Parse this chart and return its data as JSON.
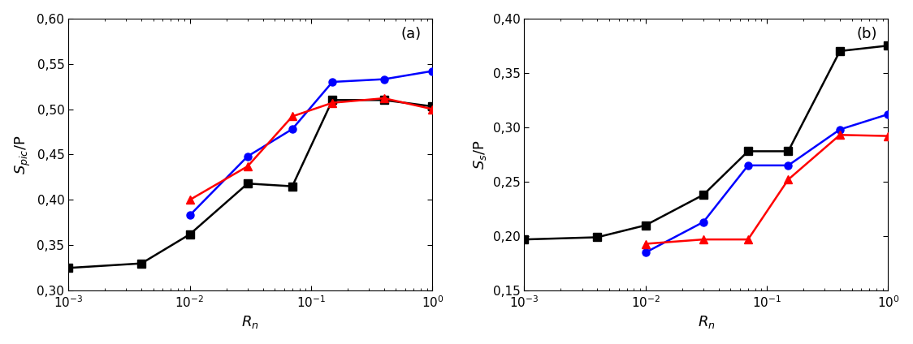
{
  "panel_a": {
    "title": "(a)",
    "ylabel": "$S_{pic}$/P",
    "xlabel": "$R_n$",
    "ylim": [
      0.3,
      0.6
    ],
    "yticks": [
      0.3,
      0.35,
      0.4,
      0.45,
      0.5,
      0.55,
      0.6
    ],
    "black_x": [
      0.001,
      0.004,
      0.01,
      0.03,
      0.07,
      0.15,
      0.4,
      1.0
    ],
    "black_y": [
      0.325,
      0.33,
      0.362,
      0.418,
      0.415,
      0.51,
      0.51,
      0.503
    ],
    "blue_x": [
      0.01,
      0.03,
      0.07,
      0.15,
      0.4,
      1.0
    ],
    "blue_y": [
      0.383,
      0.448,
      0.478,
      0.53,
      0.533,
      0.542
    ],
    "red_x": [
      0.01,
      0.03,
      0.07,
      0.15,
      0.4,
      1.0
    ],
    "red_y": [
      0.4,
      0.437,
      0.492,
      0.507,
      0.512,
      0.5
    ]
  },
  "panel_b": {
    "title": "(b)",
    "ylabel": "$S_s$/P",
    "xlabel": "$R_n$",
    "ylim": [
      0.15,
      0.4
    ],
    "yticks": [
      0.15,
      0.2,
      0.25,
      0.3,
      0.35,
      0.4
    ],
    "black_x": [
      0.001,
      0.004,
      0.01,
      0.03,
      0.07,
      0.15,
      0.4,
      1.0
    ],
    "black_y": [
      0.197,
      0.199,
      0.21,
      0.238,
      0.278,
      0.278,
      0.37,
      0.375
    ],
    "blue_x": [
      0.01,
      0.03,
      0.07,
      0.15,
      0.4,
      1.0
    ],
    "blue_y": [
      0.185,
      0.213,
      0.265,
      0.265,
      0.298,
      0.312
    ],
    "red_x": [
      0.01,
      0.03,
      0.07,
      0.15,
      0.4,
      1.0
    ],
    "red_y": [
      0.193,
      0.197,
      0.197,
      0.252,
      0.293,
      0.292
    ]
  },
  "black_color": "#000000",
  "blue_color": "#0000FF",
  "red_color": "#FF0000",
  "linewidth": 1.8,
  "markersize": 6.5
}
